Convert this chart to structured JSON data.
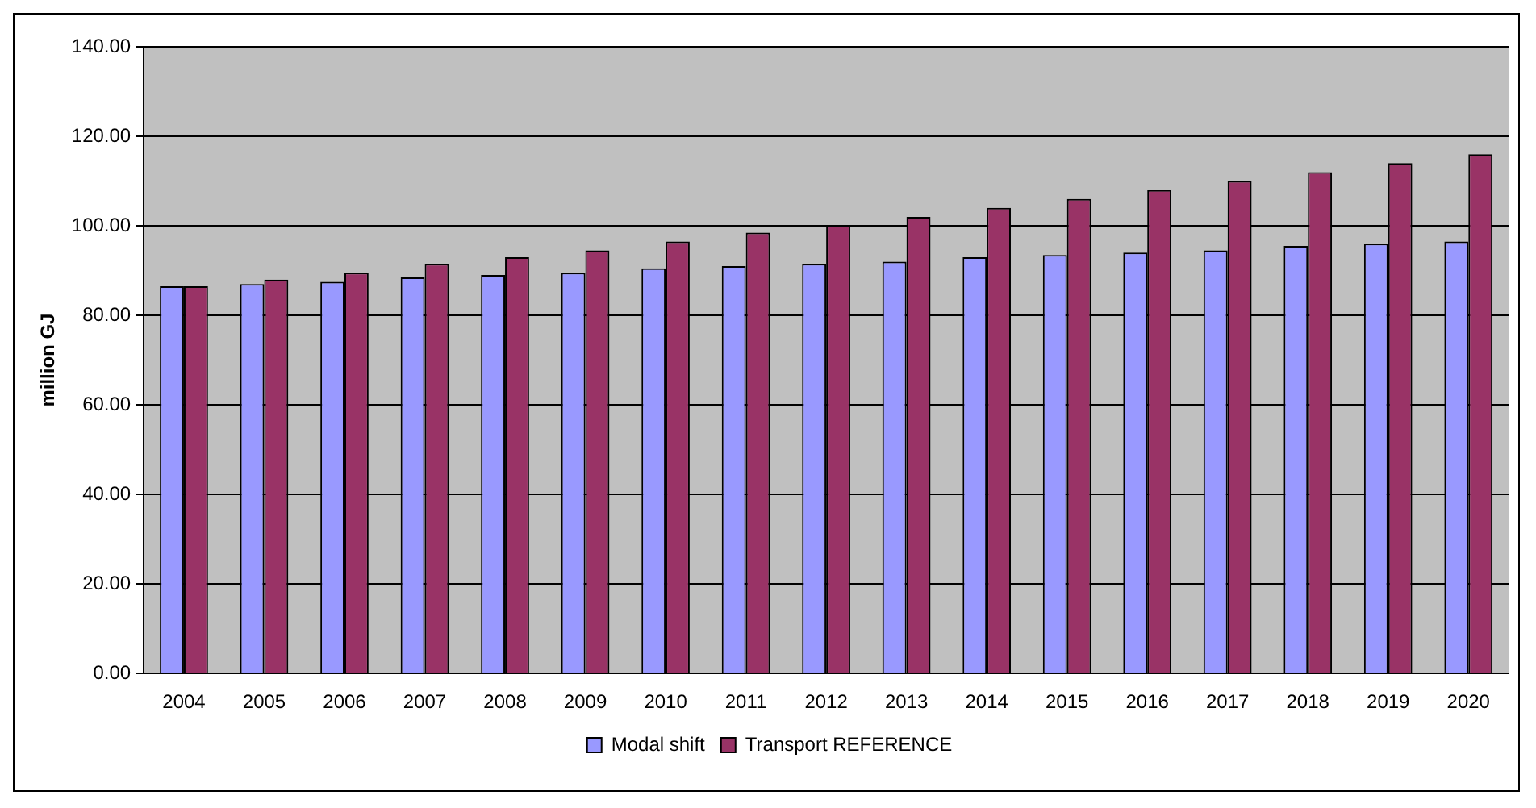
{
  "chart_data": {
    "type": "bar",
    "ylabel": "million GJ",
    "categories": [
      "2004",
      "2005",
      "2006",
      "2007",
      "2008",
      "2009",
      "2010",
      "2011",
      "2012",
      "2013",
      "2014",
      "2015",
      "2016",
      "2017",
      "2018",
      "2019",
      "2020"
    ],
    "series": [
      {
        "name": "Modal shift",
        "color": "#9999ff",
        "values": [
          86.5,
          87,
          87.5,
          88.5,
          89,
          89.5,
          90.5,
          91,
          91.5,
          92,
          93,
          93.5,
          94,
          94.5,
          95.5,
          96,
          96.5
        ]
      },
      {
        "name": "Transport REFERENCE",
        "color": "#993366",
        "values": [
          86.5,
          88,
          89.5,
          91.5,
          93,
          94.5,
          96.5,
          98.5,
          100,
          102,
          104,
          106,
          108,
          110,
          112,
          114,
          116
        ]
      }
    ],
    "ylim": [
      0,
      140
    ],
    "yticks": [
      {
        "value": 0,
        "label": "0.00"
      },
      {
        "value": 20,
        "label": "20.00"
      },
      {
        "value": 40,
        "label": "40.00"
      },
      {
        "value": 60,
        "label": "60.00"
      },
      {
        "value": 80,
        "label": "80.00"
      },
      {
        "value": 100,
        "label": "100.00"
      },
      {
        "value": 120,
        "label": "120.00"
      },
      {
        "value": 140,
        "label": "140.00"
      }
    ],
    "grid": "y",
    "legend": "bottom"
  }
}
